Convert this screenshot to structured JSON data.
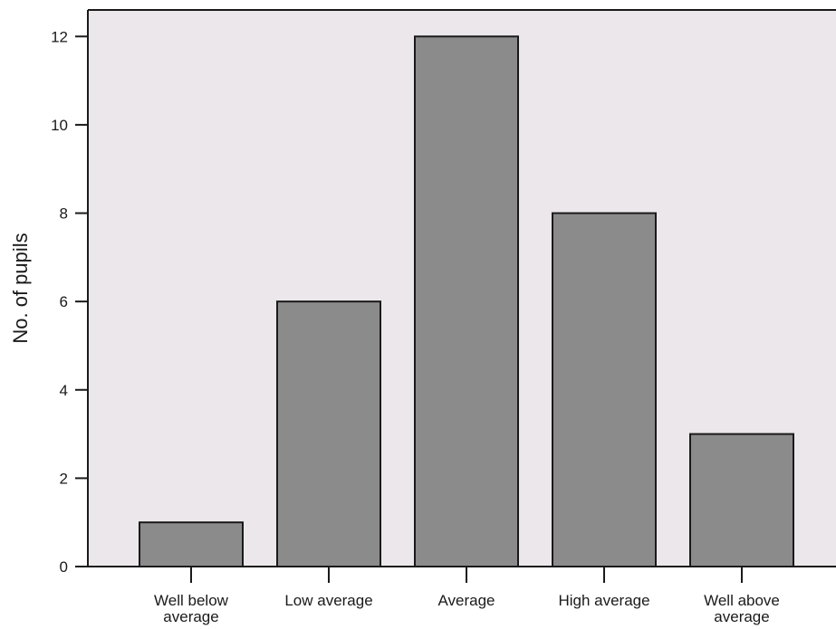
{
  "chart_data": {
    "type": "bar",
    "categories": [
      [
        "Well below",
        "average"
      ],
      [
        "Low average"
      ],
      [
        "Average"
      ],
      [
        "High average"
      ],
      [
        "Well above",
        "average"
      ]
    ],
    "values": [
      1,
      6,
      12,
      8,
      3
    ],
    "title": "",
    "xlabel": "",
    "ylabel": "No. of pupils",
    "ylim": [
      0,
      12.6
    ],
    "yticks": [
      0,
      2,
      4,
      6,
      8,
      10,
      12
    ],
    "grid": false,
    "legend": "none"
  },
  "colors": {
    "plot_background": "#ebe7ea",
    "bar_fill": "#8b8b8b",
    "bar_stroke": "#1a1a1a",
    "axis": "#1a1a1a"
  }
}
